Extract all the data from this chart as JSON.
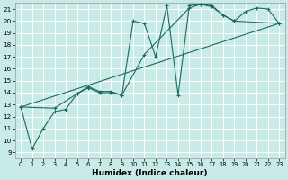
{
  "xlabel": "Humidex (Indice chaleur)",
  "bg_color": "#c8ebe8",
  "line_color": "#1a6b5a",
  "grid_color": "#ffffff",
  "xlim": [
    -0.5,
    23.5
  ],
  "ylim": [
    8.5,
    21.5
  ],
  "xticks": [
    0,
    1,
    2,
    3,
    4,
    5,
    6,
    7,
    8,
    9,
    10,
    11,
    12,
    13,
    14,
    15,
    16,
    17,
    18,
    19,
    20,
    21,
    22,
    23
  ],
  "yticks": [
    9,
    10,
    11,
    12,
    13,
    14,
    15,
    16,
    17,
    18,
    19,
    20,
    21
  ],
  "line1_x": [
    0,
    1,
    2,
    3,
    4,
    5,
    6,
    7,
    8,
    9,
    10,
    11,
    12,
    13,
    14,
    15,
    16,
    17,
    18,
    19,
    20,
    21,
    22,
    23
  ],
  "line1_y": [
    12.8,
    9.3,
    11.0,
    12.4,
    12.6,
    13.9,
    14.4,
    14.0,
    14.0,
    13.8,
    20.0,
    19.8,
    17.0,
    21.3,
    13.8,
    21.3,
    21.4,
    21.3,
    20.5,
    20.0,
    20.8,
    21.1,
    21.0,
    19.8
  ],
  "line2_x": [
    0,
    3,
    5,
    6,
    7,
    8,
    9,
    11,
    15,
    16,
    17,
    18,
    19,
    23
  ],
  "line2_y": [
    12.8,
    12.7,
    13.9,
    14.5,
    14.1,
    14.1,
    13.8,
    17.2,
    21.1,
    21.4,
    21.2,
    20.5,
    20.0,
    19.8
  ],
  "line3_x": [
    0,
    23
  ],
  "line3_y": [
    12.8,
    19.8
  ],
  "figsize": [
    3.2,
    2.0
  ],
  "dpi": 100
}
